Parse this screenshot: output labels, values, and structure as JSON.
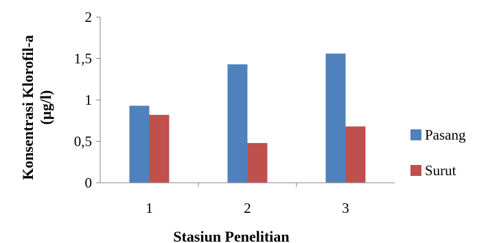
{
  "chart_data": {
    "type": "bar",
    "categories": [
      "1",
      "2",
      "3"
    ],
    "series": [
      {
        "name": "Pasang",
        "values": [
          0.93,
          1.43,
          1.56
        ],
        "color": "#4f81bd"
      },
      {
        "name": "Surut",
        "values": [
          0.82,
          0.48,
          0.68
        ],
        "color": "#c0504d"
      }
    ],
    "ylim": [
      0,
      2
    ],
    "yticks": [
      "0",
      "0,5",
      "1",
      "1,5",
      "2"
    ],
    "ytick_values": [
      0,
      0.5,
      1,
      1.5,
      2
    ],
    "xlabel": "Stasiun Penelitian",
    "ylabel_lines": [
      "Konsentrasi Klorofil-a",
      "(µg/l)"
    ],
    "grid": false,
    "legend_position": "right"
  }
}
